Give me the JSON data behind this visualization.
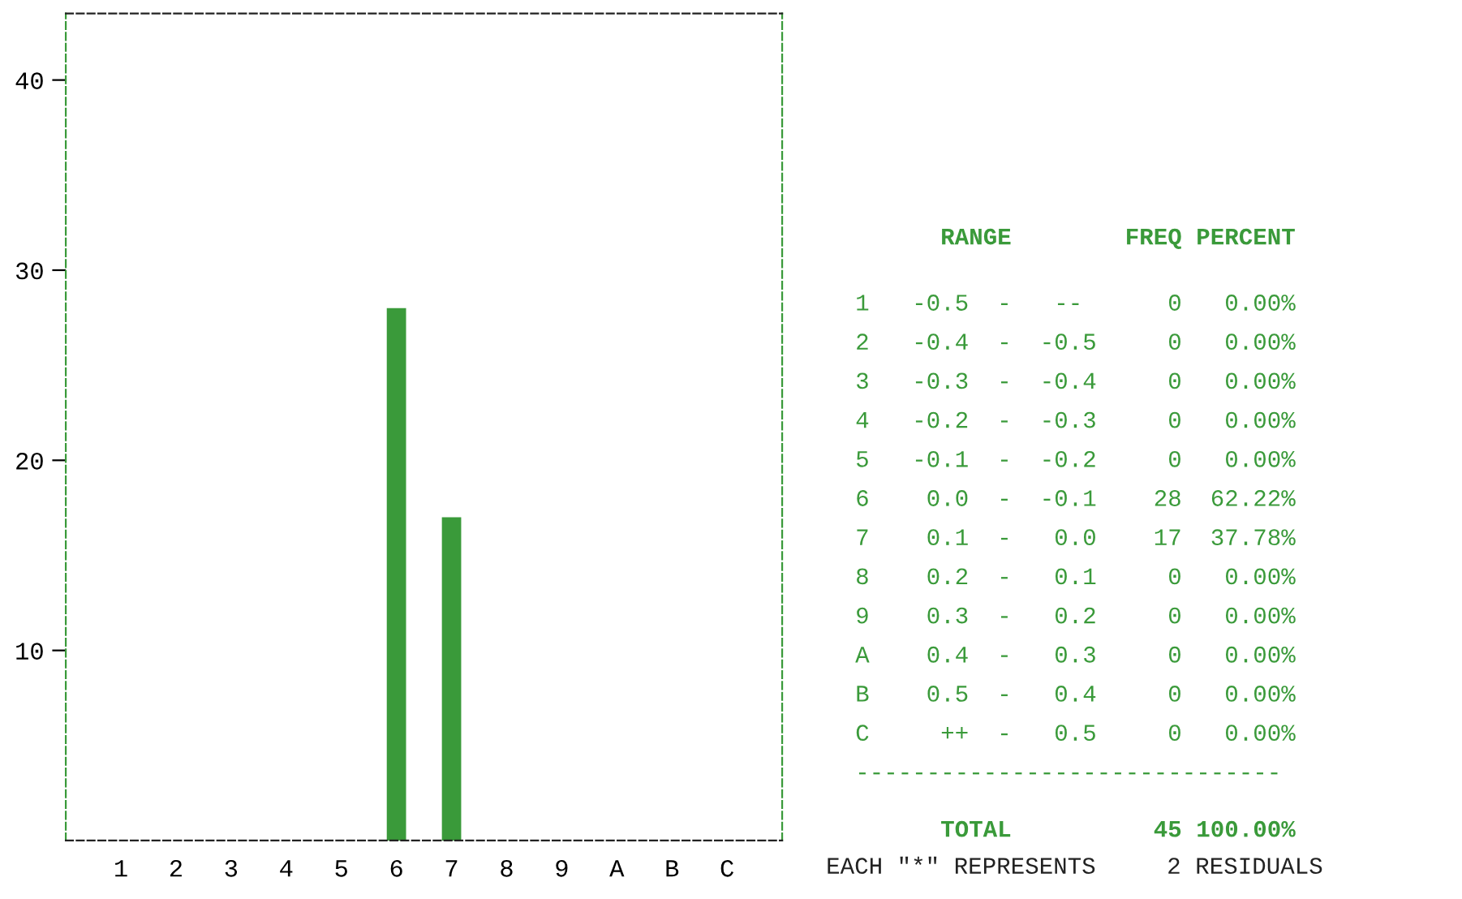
{
  "chart_data": {
    "type": "bar",
    "categories": [
      "1",
      "2",
      "3",
      "4",
      "5",
      "6",
      "7",
      "8",
      "9",
      "A",
      "B",
      "C"
    ],
    "values": [
      0,
      0,
      0,
      0,
      0,
      28,
      17,
      0,
      0,
      0,
      0,
      0
    ],
    "color": "#3a9a3a",
    "ylim": [
      0,
      43.5
    ],
    "yticks": [
      10,
      20,
      30,
      40
    ],
    "grid": false,
    "annotations": [
      "      RANGE        FREQ PERCENT",
      "1   -0.5  -   --      0   0.00%",
      "2   -0.4  -  -0.5     0   0.00%",
      "3   -0.3  -  -0.4     0   0.00%",
      "4   -0.2  -  -0.3     0   0.00%",
      "5   -0.1  -  -0.2     0   0.00%",
      "6    0.0  -  -0.1    28  62.22%",
      "7    0.1  -   0.0    17  37.78%",
      "8    0.2  -   0.1     0   0.00%",
      "9    0.3  -   0.2     0   0.00%",
      "A    0.4  -   0.3     0   0.00%",
      "B    0.5  -   0.4     0   0.00%",
      "C     ++  -   0.5     0   0.00%",
      "------------------------------",
      "      TOTAL          45 100.00%",
      "EACH \"*\" REPRESENTS     2 RESIDUALS"
    ]
  }
}
